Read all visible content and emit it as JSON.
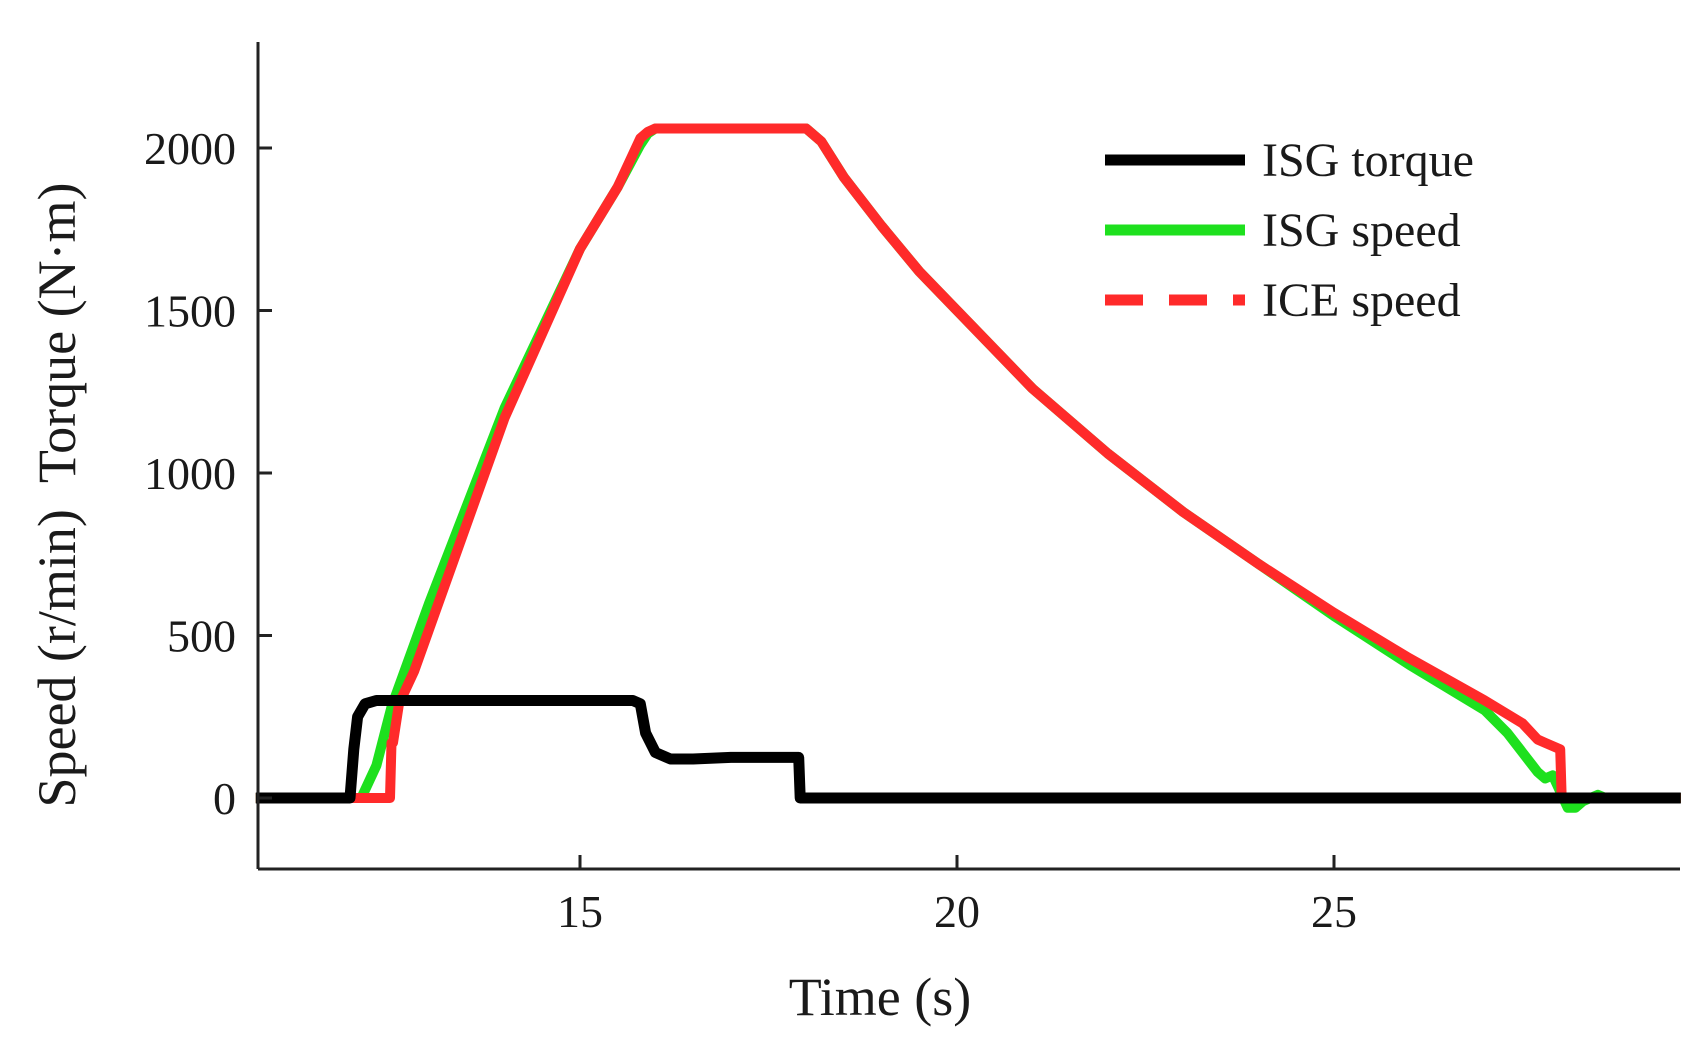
{
  "chart_data": {
    "type": "line",
    "title": "",
    "xlabel": "Time (s)",
    "ylabel": "Speed (r/min)  Torque (N·m)",
    "xlim": [
      10.7,
      29.6
    ],
    "ylim": [
      -220,
      2320
    ],
    "xticks": [
      15,
      20,
      25
    ],
    "yticks": [
      0,
      500,
      1000,
      1500,
      2000
    ],
    "grid": false,
    "legend_position": "top-right",
    "series": [
      {
        "name": "ISG torque",
        "color": "#000000",
        "style": "solid",
        "x": [
          10.7,
          11.95,
          12.0,
          12.05,
          12.15,
          12.3,
          12.5,
          13.0,
          14.0,
          15.0,
          15.7,
          15.8,
          15.87,
          16.0,
          16.2,
          16.5,
          17.0,
          17.5,
          17.9,
          17.92,
          18.0,
          20.0,
          25.0,
          28.0,
          29.6
        ],
        "values": [
          0,
          0,
          150,
          250,
          290,
          300,
          300,
          300,
          300,
          300,
          300,
          290,
          200,
          140,
          120,
          120,
          125,
          125,
          125,
          0,
          0,
          0,
          0,
          0,
          0
        ]
      },
      {
        "name": "ISG speed",
        "color": "#1ee01e",
        "style": "solid",
        "x": [
          10.7,
          12.1,
          12.3,
          12.5,
          13.0,
          14.0,
          15.0,
          15.5,
          15.8,
          15.9,
          16.0,
          16.5,
          17.0,
          17.5,
          18.0,
          18.2,
          18.5,
          19.0,
          19.5,
          20.0,
          21.0,
          22.0,
          23.0,
          24.0,
          25.0,
          26.0,
          27.0,
          27.3,
          27.5,
          27.7,
          27.8,
          27.9,
          28.0,
          28.1,
          28.2,
          28.3,
          28.5,
          28.6,
          29.6
        ],
        "values": [
          0,
          0,
          100,
          280,
          600,
          1200,
          1690,
          1880,
          2010,
          2045,
          2060,
          2060,
          2060,
          2060,
          2060,
          2020,
          1910,
          1760,
          1620,
          1500,
          1260,
          1060,
          880,
          720,
          560,
          410,
          270,
          200,
          140,
          80,
          60,
          70,
          20,
          -30,
          -30,
          -10,
          10,
          0,
          0
        ]
      },
      {
        "name": "ICE speed",
        "color": "#ff2a2a",
        "style": "dashed",
        "x": [
          10.7,
          12.48,
          12.5,
          12.52,
          12.6,
          12.8,
          13.0,
          14.0,
          15.0,
          15.5,
          15.8,
          15.9,
          16.0,
          16.5,
          17.0,
          17.5,
          18.0,
          18.2,
          18.5,
          19.0,
          19.5,
          20.0,
          21.0,
          22.0,
          23.0,
          24.0,
          25.0,
          26.0,
          27.0,
          27.5,
          27.7,
          27.8,
          28.0,
          28.02,
          28.1,
          29.6
        ],
        "values": [
          0,
          0,
          170,
          170,
          290,
          390,
          520,
          1170,
          1690,
          1880,
          2030,
          2050,
          2060,
          2060,
          2060,
          2060,
          2060,
          2020,
          1910,
          1760,
          1620,
          1500,
          1260,
          1060,
          880,
          720,
          570,
          430,
          300,
          230,
          180,
          170,
          150,
          0,
          0,
          0
        ]
      }
    ]
  }
}
